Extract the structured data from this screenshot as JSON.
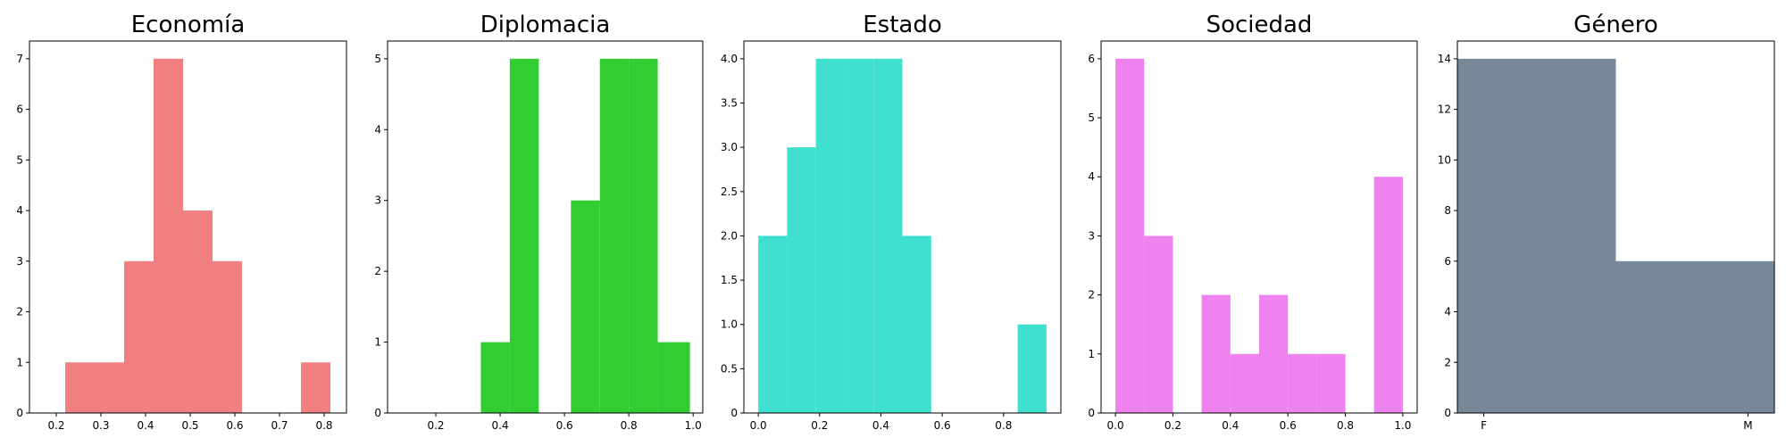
{
  "chart_data": [
    {
      "type": "bar",
      "title": "Economía",
      "color": "#f08080",
      "xlim": [
        0.14,
        0.85
      ],
      "ylim": [
        0,
        7.35
      ],
      "xticks": [
        0.2,
        0.3,
        0.4,
        0.5,
        0.6,
        0.7,
        0.8
      ],
      "xtick_labels": [
        "0.2",
        "0.3",
        "0.4",
        "0.5",
        "0.6",
        "0.7",
        "0.8"
      ],
      "yticks": [
        0,
        1,
        2,
        3,
        4,
        5,
        6,
        7
      ],
      "ytick_labels": [
        "0",
        "1",
        "2",
        "3",
        "4",
        "5",
        "6",
        "7"
      ],
      "bins": [
        {
          "x0": 0.22,
          "x1": 0.286,
          "value": 1
        },
        {
          "x0": 0.286,
          "x1": 0.352,
          "value": 1
        },
        {
          "x0": 0.352,
          "x1": 0.418,
          "value": 3
        },
        {
          "x0": 0.418,
          "x1": 0.484,
          "value": 7
        },
        {
          "x0": 0.484,
          "x1": 0.55,
          "value": 4
        },
        {
          "x0": 0.55,
          "x1": 0.616,
          "value": 3
        },
        {
          "x0": 0.616,
          "x1": 0.682,
          "value": 0
        },
        {
          "x0": 0.682,
          "x1": 0.748,
          "value": 0
        },
        {
          "x0": 0.748,
          "x1": 0.814,
          "value": 1
        }
      ]
    },
    {
      "type": "bar",
      "title": "Diplomacia",
      "color": "#32cd32",
      "xlim": [
        0.05,
        1.03
      ],
      "ylim": [
        0,
        5.25
      ],
      "xticks": [
        0.2,
        0.4,
        0.6,
        0.8,
        1.0
      ],
      "xtick_labels": [
        "0.2",
        "0.4",
        "0.6",
        "0.8",
        "1.0"
      ],
      "yticks": [
        0,
        1,
        2,
        3,
        4,
        5
      ],
      "ytick_labels": [
        "0",
        "1",
        "2",
        "3",
        "4",
        "5"
      ],
      "bins": [
        {
          "x0": 0.34,
          "x1": 0.43,
          "value": 1
        },
        {
          "x0": 0.43,
          "x1": 0.52,
          "value": 5
        },
        {
          "x0": 0.52,
          "x1": 0.62,
          "value": 0
        },
        {
          "x0": 0.62,
          "x1": 0.71,
          "value": 3
        },
        {
          "x0": 0.71,
          "x1": 0.8,
          "value": 5
        },
        {
          "x0": 0.8,
          "x1": 0.89,
          "value": 5
        },
        {
          "x0": 0.89,
          "x1": 0.99,
          "value": 1
        }
      ]
    },
    {
      "type": "bar",
      "title": "Estado",
      "color": "#40e0d0",
      "xlim": [
        -0.047,
        0.987
      ],
      "ylim": [
        0,
        4.2
      ],
      "xticks": [
        0.0,
        0.2,
        0.4,
        0.6,
        0.8
      ],
      "xtick_labels": [
        "0.0",
        "0.2",
        "0.4",
        "0.6",
        "0.8"
      ],
      "yticks": [
        0,
        0.5,
        1.0,
        1.5,
        2.0,
        2.5,
        3.0,
        3.5,
        4.0
      ],
      "ytick_labels": [
        "0",
        "0.5",
        "1.0",
        "1.5",
        "2.0",
        "2.5",
        "3.0",
        "3.5",
        "4.0"
      ],
      "bins": [
        {
          "x0": 0.0,
          "x1": 0.094,
          "value": 2
        },
        {
          "x0": 0.094,
          "x1": 0.188,
          "value": 3
        },
        {
          "x0": 0.188,
          "x1": 0.282,
          "value": 4
        },
        {
          "x0": 0.282,
          "x1": 0.376,
          "value": 4
        },
        {
          "x0": 0.376,
          "x1": 0.47,
          "value": 4
        },
        {
          "x0": 0.47,
          "x1": 0.564,
          "value": 2
        },
        {
          "x0": 0.564,
          "x1": 0.658,
          "value": 0
        },
        {
          "x0": 0.658,
          "x1": 0.752,
          "value": 0
        },
        {
          "x0": 0.752,
          "x1": 0.846,
          "value": 0
        },
        {
          "x0": 0.846,
          "x1": 0.94,
          "value": 1
        }
      ]
    },
    {
      "type": "bar",
      "title": "Sociedad",
      "color": "#ee82ee",
      "xlim": [
        -0.05,
        1.05
      ],
      "ylim": [
        0,
        6.3
      ],
      "xticks": [
        0.0,
        0.2,
        0.4,
        0.6,
        0.8,
        1.0
      ],
      "xtick_labels": [
        "0.0",
        "0.2",
        "0.4",
        "0.6",
        "0.8",
        "1.0"
      ],
      "yticks": [
        0,
        1,
        2,
        3,
        4,
        5,
        6
      ],
      "ytick_labels": [
        "0",
        "1",
        "2",
        "3",
        "4",
        "5",
        "6"
      ],
      "bins": [
        {
          "x0": 0.0,
          "x1": 0.1,
          "value": 6
        },
        {
          "x0": 0.1,
          "x1": 0.2,
          "value": 3
        },
        {
          "x0": 0.2,
          "x1": 0.3,
          "value": 0
        },
        {
          "x0": 0.3,
          "x1": 0.4,
          "value": 2
        },
        {
          "x0": 0.4,
          "x1": 0.5,
          "value": 1
        },
        {
          "x0": 0.5,
          "x1": 0.6,
          "value": 2
        },
        {
          "x0": 0.6,
          "x1": 0.7,
          "value": 1
        },
        {
          "x0": 0.7,
          "x1": 0.8,
          "value": 1
        },
        {
          "x0": 0.8,
          "x1": 0.9,
          "value": 0
        },
        {
          "x0": 0.9,
          "x1": 1.0,
          "value": 4
        }
      ]
    },
    {
      "type": "bar",
      "title": "Género",
      "color": "#778899",
      "xlim": [
        -0.1,
        1.1
      ],
      "ylim": [
        0,
        14.7
      ],
      "xticks": [
        0.0,
        1.0
      ],
      "xtick_labels": [
        "F",
        "M"
      ],
      "yticks": [
        0,
        2,
        4,
        6,
        8,
        10,
        12,
        14
      ],
      "ytick_labels": [
        "0",
        "2",
        "4",
        "6",
        "8",
        "10",
        "12",
        "14"
      ],
      "bins": [
        {
          "x0": -0.5,
          "x1": 0.5,
          "value": 14
        },
        {
          "x0": 0.5,
          "x1": 1.5,
          "value": 6
        }
      ]
    }
  ]
}
